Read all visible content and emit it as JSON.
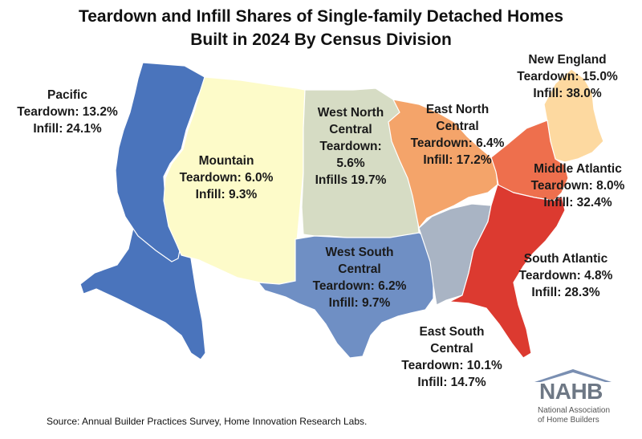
{
  "title": {
    "line1": "Teardown and Infill Shares of Single-family Detached Homes",
    "line2": "Built in 2024 By Census Division"
  },
  "regions": [
    {
      "key": "pacific",
      "name": "Pacific",
      "lines": [
        "Pacific",
        "Teardown: 13.2%",
        "Infill: 24.1%"
      ],
      "teardown_pct": 13.2,
      "infill_pct": 24.1,
      "color": "#4a74bc"
    },
    {
      "key": "mountain",
      "name": "Mountain",
      "lines": [
        "Mountain",
        "Teardown: 6.0%",
        "Infill: 9.3%"
      ],
      "teardown_pct": 6.0,
      "infill_pct": 9.3,
      "color": "#fdfbc9"
    },
    {
      "key": "west-north-central",
      "name": "West North Central",
      "lines": [
        "West North",
        "Central",
        "Teardown:",
        "5.6%",
        "Infills 19.7%"
      ],
      "teardown_pct": 5.6,
      "infill_pct": 19.7,
      "color": "#d6dcc4"
    },
    {
      "key": "east-north-central",
      "name": "East North Central",
      "lines": [
        "East North",
        "Central",
        "Teardown: 6.4%",
        "Infill: 17.2%"
      ],
      "teardown_pct": 6.4,
      "infill_pct": 17.2,
      "color": "#f4a46a"
    },
    {
      "key": "new-england",
      "name": "New England",
      "lines": [
        "New England",
        "Teardown: 15.0%",
        "Infill: 38.0%"
      ],
      "teardown_pct": 15.0,
      "infill_pct": 38.0,
      "color": "#fdd9a0"
    },
    {
      "key": "middle-atlantic",
      "name": "Middle Atlantic",
      "lines": [
        "Middle Atlantic",
        "Teardown: 8.0%",
        "Infill: 32.4%"
      ],
      "teardown_pct": 8.0,
      "infill_pct": 32.4,
      "color": "#ee6f4d"
    },
    {
      "key": "west-south-central",
      "name": "West South Central",
      "lines": [
        "West South",
        "Central",
        "Teardown: 6.2%",
        "Infill: 9.7%"
      ],
      "teardown_pct": 6.2,
      "infill_pct": 9.7,
      "color": "#6f8fc4"
    },
    {
      "key": "east-south-central",
      "name": "East South Central",
      "lines": [
        "East South",
        "Central",
        "Teardown: 10.1%",
        "Infill: 14.7%"
      ],
      "teardown_pct": 10.1,
      "infill_pct": 14.7,
      "color": "#a9b4c4"
    },
    {
      "key": "south-atlantic",
      "name": "South Atlantic",
      "lines": [
        "South Atlantic",
        "Teardown: 4.8%",
        "Infill: 28.3%"
      ],
      "teardown_pct": 4.8,
      "infill_pct": 28.3,
      "color": "#dc3a30"
    }
  ],
  "source": "Source: Annual Builder Practices Survey, Home Innovation Research Labs.",
  "logo": {
    "word": "NAHB",
    "sub1": "National Association",
    "sub2": "of Home Builders",
    "roof_color": "#7a8fb2"
  }
}
